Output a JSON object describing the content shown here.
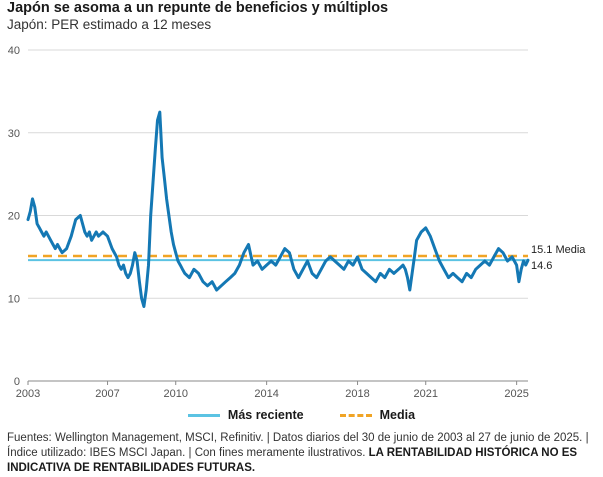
{
  "title": "Japón se asoma a un repunte de beneficios y múltiplos",
  "subtitle": "Japón: PER estimado a 12 meses",
  "legend": {
    "latest": "Más reciente",
    "mean": "Media"
  },
  "colors": {
    "series": "#1478b4",
    "latest": "#5bc3e3",
    "mean": "#f0a425",
    "grid": "#d9d9d9"
  },
  "footer": {
    "sources": "Fuentes: Wellington Management, MSCI, Refinitiv.",
    "period": "Datos diarios del 30 de junio de 2003 al 27 de junio de 2025.",
    "index": "Índice utilizado: IBES MSCI Japan.",
    "purpose": "Con fines meramente ilustrativos.",
    "disclaimer": "LA RENTABILIDAD HISTÓRICA NO ES INDICATIVA DE RENTABILIDADES FUTURAS."
  },
  "chart_data": {
    "type": "line",
    "ylim": [
      0,
      40
    ],
    "yticks": [
      0,
      10,
      20,
      30,
      40
    ],
    "xlim": [
      2003.5,
      2025.5
    ],
    "xticks": [
      "2003",
      "2007",
      "2010",
      "2014",
      "2018",
      "2021",
      "2025"
    ],
    "grid": true,
    "latest_value": 14.6,
    "mean_value": 15.1,
    "latest_label": "14.6",
    "mean_label": "15.1 Media",
    "series": [
      {
        "x": [
          2003.5,
          2003.6,
          2003.7,
          2003.8,
          2003.9,
          2004.0,
          2004.1,
          2004.2,
          2004.3,
          2004.4,
          2004.5,
          2004.6,
          2004.7,
          2004.8,
          2004.9,
          2005.0,
          2005.2,
          2005.4,
          2005.6,
          2005.8,
          2006.0,
          2006.1,
          2006.2,
          2006.3,
          2006.4,
          2006.5,
          2006.6,
          2006.8,
          2007.0,
          2007.2,
          2007.4,
          2007.5,
          2007.6,
          2007.7,
          2007.8,
          2007.9,
          2008.0,
          2008.1,
          2008.2,
          2008.3,
          2008.4,
          2008.5,
          2008.6,
          2008.7,
          2008.8,
          2008.85,
          2008.9,
          2009.0,
          2009.1,
          2009.2,
          2009.3,
          2009.4,
          2009.5,
          2009.6,
          2009.7,
          2009.8,
          2009.9,
          2010.0,
          2010.1,
          2010.2,
          2010.3,
          2010.4,
          2010.6,
          2010.8,
          2011.0,
          2011.2,
          2011.4,
          2011.6,
          2011.8,
          2012.0,
          2012.2,
          2012.4,
          2012.6,
          2012.8,
          2013.0,
          2013.2,
          2013.4,
          2013.6,
          2013.8,
          2014.0,
          2014.2,
          2014.4,
          2014.6,
          2014.8,
          2015.0,
          2015.2,
          2015.4,
          2015.6,
          2015.8,
          2016.0,
          2016.2,
          2016.4,
          2016.6,
          2016.8,
          2017.0,
          2017.2,
          2017.4,
          2017.6,
          2017.8,
          2018.0,
          2018.2,
          2018.4,
          2018.6,
          2018.8,
          2019.0,
          2019.2,
          2019.4,
          2019.6,
          2019.8,
          2020.0,
          2020.1,
          2020.2,
          2020.3,
          2020.4,
          2020.5,
          2020.6,
          2020.8,
          2021.0,
          2021.2,
          2021.4,
          2021.6,
          2021.8,
          2022.0,
          2022.2,
          2022.4,
          2022.6,
          2022.8,
          2023.0,
          2023.2,
          2023.4,
          2023.6,
          2023.8,
          2024.0,
          2024.2,
          2024.4,
          2024.6,
          2024.8,
          2025.0,
          2025.1,
          2025.2,
          2025.3,
          2025.4,
          2025.5
        ],
        "values": [
          19.5,
          20.5,
          22.0,
          21.0,
          19.0,
          18.5,
          18.0,
          17.5,
          18.0,
          17.5,
          17.0,
          16.5,
          16.0,
          16.5,
          16.0,
          15.5,
          16.0,
          17.5,
          19.5,
          20.0,
          18.0,
          17.5,
          18.0,
          17.0,
          17.5,
          18.0,
          17.5,
          18.0,
          17.5,
          16.0,
          15.0,
          14.0,
          13.5,
          14.0,
          13.0,
          12.5,
          13.0,
          14.0,
          15.5,
          14.5,
          12.0,
          10.0,
          9.0,
          11.0,
          14.0,
          17.0,
          20.0,
          24.0,
          28.0,
          31.5,
          32.5,
          27.0,
          24.5,
          22.0,
          20.0,
          18.0,
          16.5,
          15.5,
          14.5,
          14.0,
          13.5,
          13.0,
          12.5,
          13.5,
          13.0,
          12.0,
          11.5,
          12.0,
          11.0,
          11.5,
          12.0,
          12.5,
          13.0,
          14.0,
          15.5,
          16.5,
          14.0,
          14.5,
          13.5,
          14.0,
          14.5,
          14.0,
          15.0,
          16.0,
          15.5,
          13.5,
          12.5,
          13.5,
          14.5,
          13.0,
          12.5,
          13.5,
          14.5,
          15.0,
          14.5,
          14.0,
          13.5,
          14.5,
          14.0,
          15.0,
          13.5,
          13.0,
          12.5,
          12.0,
          13.0,
          12.5,
          13.5,
          13.0,
          13.5,
          14.0,
          13.5,
          12.5,
          11.0,
          13.0,
          15.0,
          17.0,
          18.0,
          18.5,
          17.5,
          16.0,
          14.5,
          13.5,
          12.5,
          13.0,
          12.5,
          12.0,
          13.0,
          12.5,
          13.5,
          14.0,
          14.5,
          14.0,
          15.0,
          16.0,
          15.5,
          14.5,
          15.0,
          14.0,
          12.0,
          13.5,
          14.5,
          14.0,
          14.6
        ]
      }
    ]
  }
}
